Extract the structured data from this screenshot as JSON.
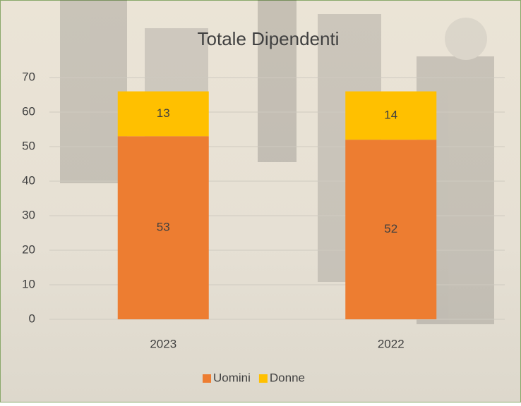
{
  "chart_data": {
    "type": "stacked_bar",
    "title": "Totale Dipendenti",
    "categories": [
      "2023",
      "2022"
    ],
    "series": [
      {
        "name": "Uomini",
        "color": "#ed7d31",
        "values": [
          53,
          52
        ]
      },
      {
        "name": "Donne",
        "color": "#ffc000",
        "values": [
          13,
          14
        ]
      }
    ],
    "ylim": [
      0,
      70
    ],
    "yticks": [
      0,
      10,
      20,
      30,
      40,
      50,
      60,
      70
    ],
    "grid": true,
    "legend": "bottom"
  }
}
